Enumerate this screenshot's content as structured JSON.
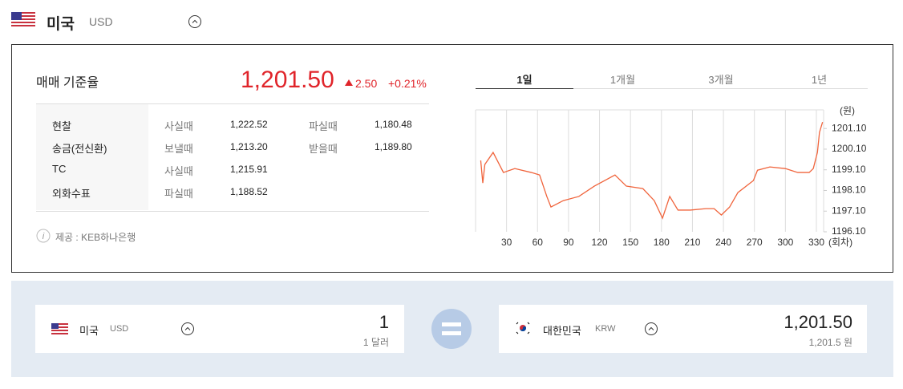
{
  "header": {
    "country": "미국",
    "code": "USD"
  },
  "rate_panel": {
    "title": "매매 기준율",
    "rate": "1,201.50",
    "change": "2.50",
    "change_percent": "+0.21%",
    "table": {
      "rows": [
        [
          "현찰",
          "사실때",
          "1,222.52",
          "파실때",
          "1,180.48"
        ],
        [
          "송금(전신환)",
          "보낼때",
          "1,213.20",
          "받을때",
          "1,189.80"
        ],
        [
          "TC",
          "사실때",
          "1,215.91"
        ],
        [
          "외화수표",
          "파실때",
          "1,188.52"
        ]
      ]
    },
    "provider": "제공 : KEB하나은행"
  },
  "tabs": [
    "1일",
    "1개월",
    "3개월",
    "1년"
  ],
  "chart_data": {
    "type": "line",
    "y_label": "(원)",
    "x_label": "(회차)",
    "color": "#f0643c",
    "grid": true,
    "x": [
      5,
      7,
      9,
      17,
      27,
      38,
      54,
      62,
      69,
      73,
      85,
      100,
      115,
      135,
      146,
      162,
      173,
      181,
      188,
      196,
      208,
      223,
      231,
      238,
      246,
      254,
      269,
      273,
      285,
      300,
      312,
      323,
      327,
      331,
      333,
      336
    ],
    "values": [
      1199.55,
      1198.46,
      1199.36,
      1199.94,
      1198.97,
      1199.16,
      1198.97,
      1198.85,
      1197.81,
      1197.3,
      1197.61,
      1197.81,
      1198.31,
      1198.85,
      1198.31,
      1198.19,
      1197.61,
      1196.76,
      1197.81,
      1197.15,
      1197.15,
      1197.22,
      1197.22,
      1196.91,
      1197.3,
      1198.0,
      1198.58,
      1199.08,
      1199.24,
      1199.16,
      1198.97,
      1198.97,
      1199.16,
      1199.94,
      1200.91,
      1201.41
    ],
    "xlim": [
      0,
      337
    ],
    "xticks": [
      30,
      60,
      90,
      120,
      150,
      180,
      210,
      240,
      270,
      300,
      330
    ],
    "ylim": [
      1196.1,
      1202.0
    ],
    "yticks": [
      {
        "value": 1196.1,
        "label": "1196.10"
      },
      {
        "value": 1197.1,
        "label": "1197.10"
      },
      {
        "value": 1198.1,
        "label": "1198.10"
      },
      {
        "value": 1199.1,
        "label": "1199.10"
      },
      {
        "value": 1200.1,
        "label": "1200.10"
      },
      {
        "value": 1201.1,
        "label": "1201.10"
      }
    ]
  },
  "converter": {
    "from": {
      "country": "미국",
      "code": "USD",
      "amount": "1",
      "amount_text": "1 달러"
    },
    "to": {
      "country": "대한민국",
      "code": "KRW",
      "amount": "1,201.50",
      "amount_text": "1,201.5 원"
    }
  }
}
